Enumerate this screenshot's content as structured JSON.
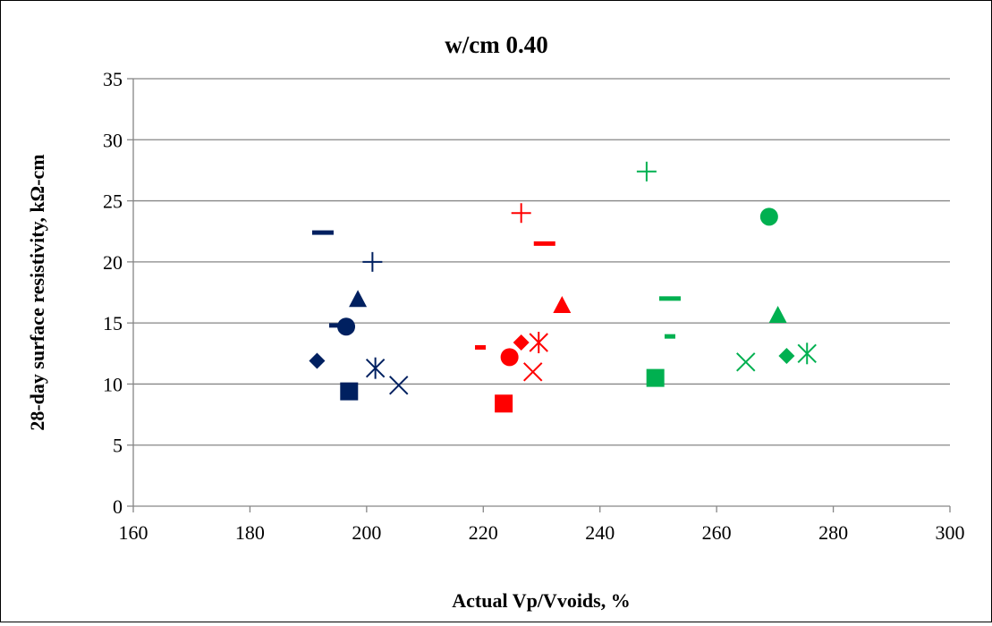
{
  "chart_data": {
    "type": "scatter",
    "title": "w/cm 0.40",
    "xlabel": "Actual Vp/Vvoids, %",
    "ylabel": "28-day surface resistivity, kΩ-cm",
    "xlim": [
      160,
      300
    ],
    "ylim": [
      0,
      35
    ],
    "xticks": [
      "160",
      "180",
      "200",
      "220",
      "240",
      "260",
      "280",
      "300"
    ],
    "yticks": [
      "0",
      "5",
      "10",
      "15",
      "20",
      "25",
      "30",
      "35"
    ],
    "grid": "horizontal",
    "legend": "none",
    "colors": {
      "navy": "#002060",
      "red": "#ff0000",
      "green": "#00b050",
      "grid": "#868686"
    },
    "series": [
      {
        "color": "#002060",
        "points": [
          {
            "x": 192.5,
            "y": 22.4,
            "marker": "dash"
          },
          {
            "x": 201.0,
            "y": 20.0,
            "marker": "plus"
          },
          {
            "x": 198.5,
            "y": 16.9,
            "marker": "triangle"
          },
          {
            "x": 196.5,
            "y": 14.7,
            "marker": "circle"
          },
          {
            "x": 194.5,
            "y": 14.8,
            "marker": "small-dash"
          },
          {
            "x": 191.5,
            "y": 11.9,
            "marker": "diamond"
          },
          {
            "x": 201.5,
            "y": 11.3,
            "marker": "star"
          },
          {
            "x": 205.5,
            "y": 9.9,
            "marker": "x"
          },
          {
            "x": 197.0,
            "y": 9.4,
            "marker": "square"
          }
        ]
      },
      {
        "color": "#ff0000",
        "points": [
          {
            "x": 226.5,
            "y": 24.0,
            "marker": "plus"
          },
          {
            "x": 230.5,
            "y": 21.5,
            "marker": "dash"
          },
          {
            "x": 233.5,
            "y": 16.4,
            "marker": "triangle"
          },
          {
            "x": 226.5,
            "y": 13.4,
            "marker": "diamond"
          },
          {
            "x": 229.5,
            "y": 13.4,
            "marker": "star"
          },
          {
            "x": 219.5,
            "y": 13.0,
            "marker": "small-dash"
          },
          {
            "x": 224.5,
            "y": 12.2,
            "marker": "circle"
          },
          {
            "x": 228.5,
            "y": 11.0,
            "marker": "x"
          },
          {
            "x": 223.5,
            "y": 8.4,
            "marker": "square"
          }
        ]
      },
      {
        "color": "#00b050",
        "points": [
          {
            "x": 248.0,
            "y": 27.4,
            "marker": "plus"
          },
          {
            "x": 269.0,
            "y": 23.7,
            "marker": "circle"
          },
          {
            "x": 252.0,
            "y": 17.0,
            "marker": "dash"
          },
          {
            "x": 270.5,
            "y": 15.6,
            "marker": "triangle"
          },
          {
            "x": 252.0,
            "y": 13.9,
            "marker": "small-dash"
          },
          {
            "x": 272.0,
            "y": 12.3,
            "marker": "diamond"
          },
          {
            "x": 275.5,
            "y": 12.5,
            "marker": "star"
          },
          {
            "x": 265.0,
            "y": 11.8,
            "marker": "x"
          },
          {
            "x": 249.5,
            "y": 10.5,
            "marker": "square"
          }
        ]
      }
    ]
  }
}
